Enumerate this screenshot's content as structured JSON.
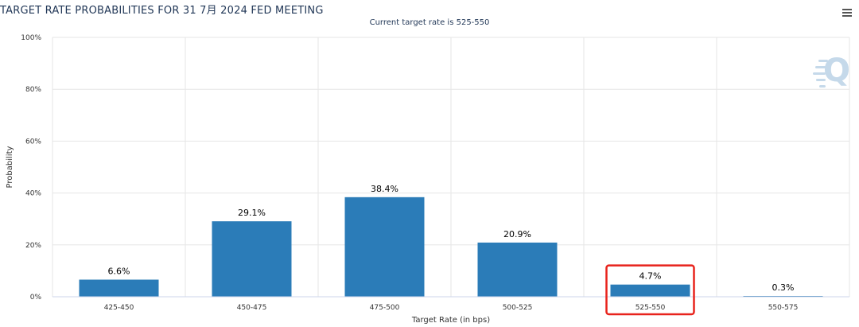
{
  "chart_data": {
    "type": "bar",
    "title": "TARGET RATE PROBABILITIES FOR 31 7月 2024 FED MEETING",
    "subtitle": "Current target rate is 525-550",
    "xlabel": "Target Rate (in bps)",
    "ylabel": "Probability",
    "categories": [
      "425-450",
      "450-475",
      "475-500",
      "500-525",
      "525-550",
      "550-575"
    ],
    "values": [
      6.6,
      29.1,
      38.4,
      20.9,
      4.7,
      0.3
    ],
    "data_labels": [
      "6.6%",
      "29.1%",
      "38.4%",
      "20.9%",
      "4.7%",
      "0.3%"
    ],
    "y_ticks": [
      "0%",
      "20%",
      "40%",
      "60%",
      "80%",
      "100%"
    ],
    "ylim": [
      0,
      100
    ],
    "grid": true,
    "legend": "none",
    "highlighted_category": "525-550",
    "colors": {
      "bar": "#2b7cb8",
      "highlight_box": "#e8231c",
      "grid": "#e6e6e6",
      "axis_text": "#333333",
      "title_text": "#1f3555",
      "logo": "#c5d9ea"
    }
  },
  "icons": {
    "menu": "hamburger-menu-icon",
    "logo": "q-logo-icon"
  }
}
